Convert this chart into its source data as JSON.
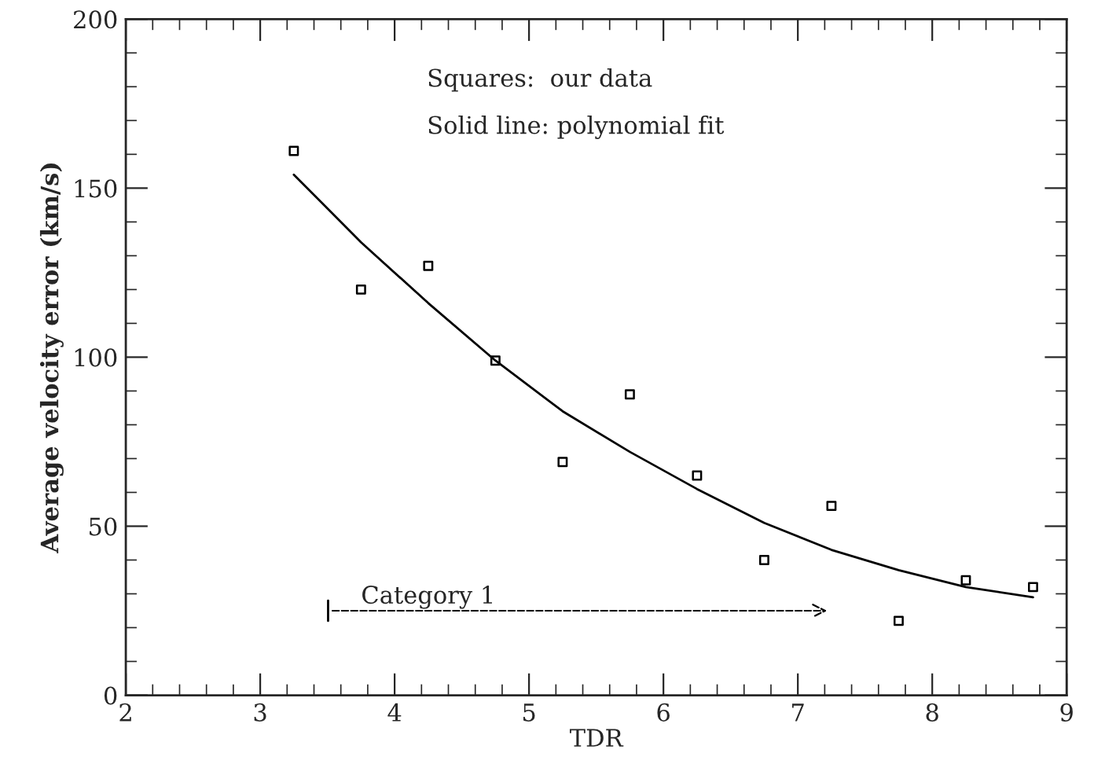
{
  "chart_data": {
    "type": "scatter",
    "xlabel": "TDR",
    "ylabel": "Average velocity error (km/s)",
    "xlim": [
      2,
      9
    ],
    "ylim": [
      0,
      200
    ],
    "xticks": [
      2,
      3,
      4,
      5,
      6,
      7,
      8,
      9
    ],
    "yticks": [
      0,
      50,
      100,
      150,
      200
    ],
    "grid": false,
    "series": [
      {
        "marker": "square",
        "color": "#000000",
        "x": [
          3.25,
          3.75,
          4.25,
          4.75,
          5.25,
          5.75,
          6.25,
          6.75,
          7.25,
          7.75,
          8.25,
          8.75
        ],
        "values": [
          161,
          120,
          127,
          99,
          69,
          89,
          65,
          40,
          56,
          22,
          34,
          32
        ]
      },
      {
        "type": "line",
        "color": "#000000",
        "line_style": "solid",
        "x": [
          3.25,
          3.75,
          4.25,
          4.75,
          5.25,
          5.75,
          6.25,
          6.75,
          7.25,
          7.75,
          8.25,
          8.75
        ],
        "values": [
          154,
          134,
          116,
          99,
          84,
          72,
          61,
          51,
          43,
          37,
          32,
          29
        ]
      }
    ],
    "annotations": [
      "Squares:  our data",
      "Solid line: polynomial fit",
      "Category 1"
    ]
  }
}
